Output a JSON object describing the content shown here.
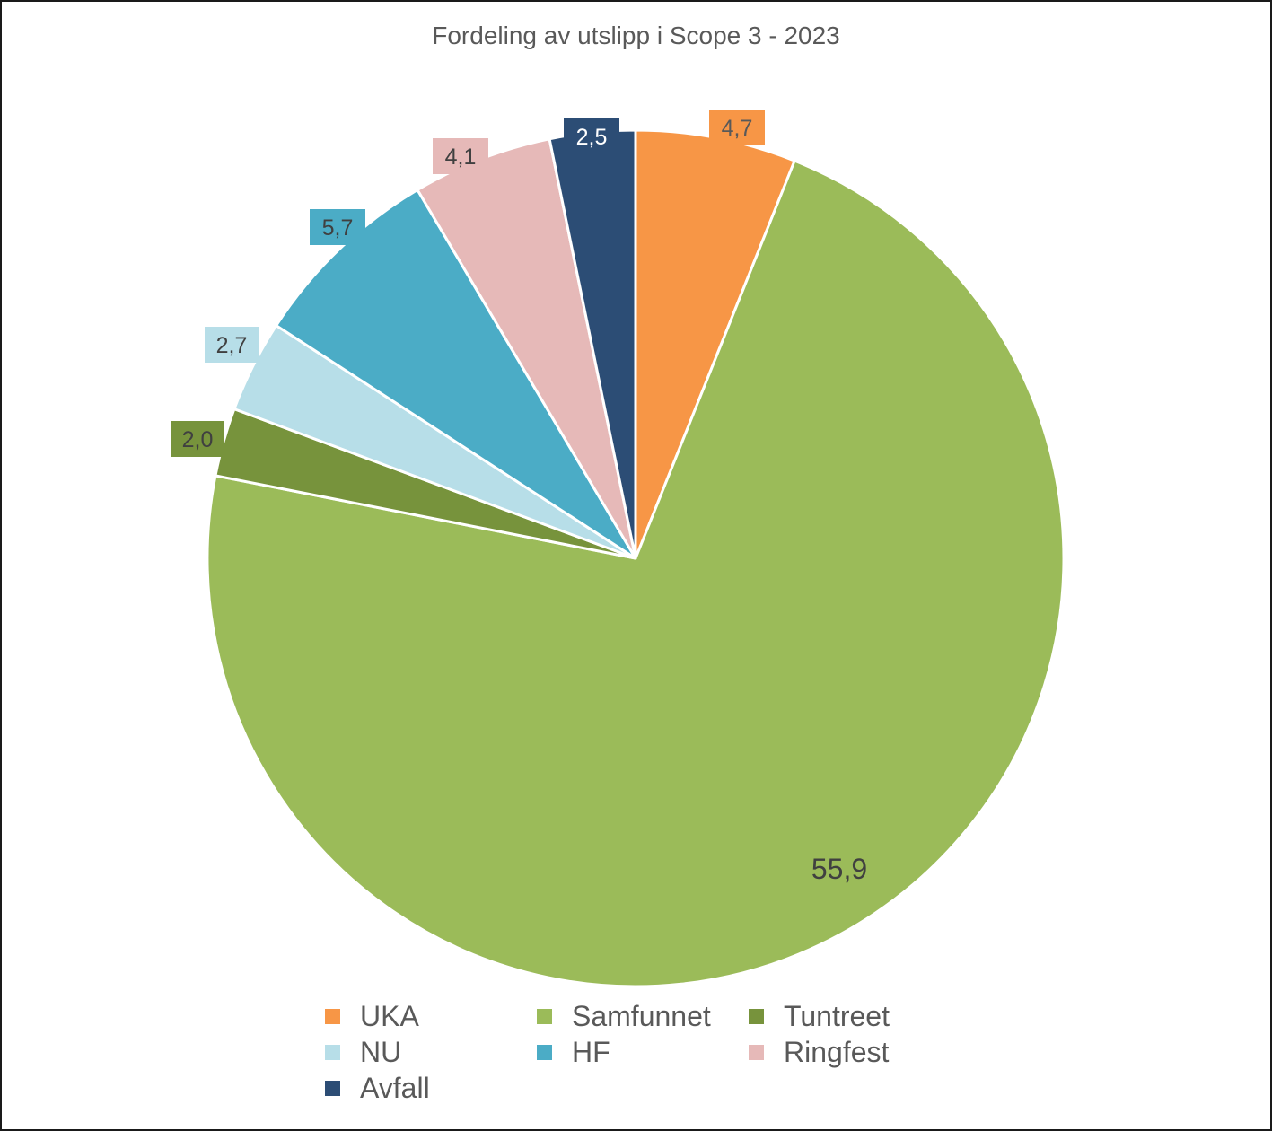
{
  "chart_data": {
    "type": "pie",
    "title": "Fordeling av utslipp i Scope 3 - 2023",
    "categories": [
      "UKA",
      "Samfunnet",
      "Tuntreet",
      "NU",
      "HF",
      "Ringfest",
      "Avfall"
    ],
    "values": [
      4.7,
      55.9,
      2.0,
      2.7,
      5.7,
      4.1,
      2.5
    ],
    "data_labels": [
      "4,7",
      "55,9",
      "2,0",
      "2,7",
      "5,7",
      "4,1",
      "2,5"
    ],
    "colors": [
      "#F79646",
      "#9BBB59",
      "#77933C",
      "#B7DEE8",
      "#4BACC6",
      "#E6B9B8",
      "#2C4D75"
    ],
    "start_angle": "12 o'clock",
    "direction": "clockwise",
    "legend_position": "bottom"
  }
}
